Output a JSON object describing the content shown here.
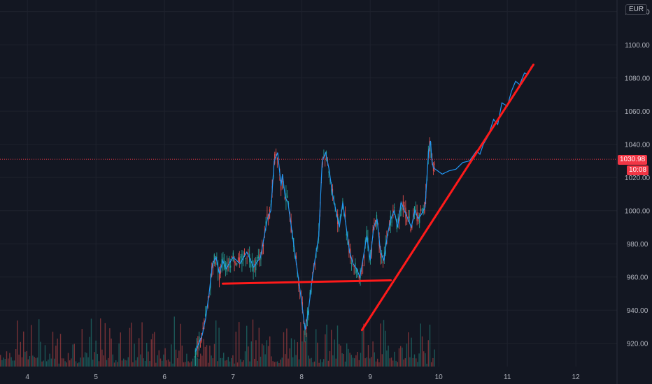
{
  "currency": "EUR",
  "price_label": "1030.98",
  "time_label": "10:08",
  "colors": {
    "background": "#131722",
    "candle_up": "#26a69a",
    "candle_down": "#ef5350",
    "overlay_line": "#2196f3",
    "drawing": "#ff1a1a",
    "price_badge": "#f23645"
  },
  "chart_data": {
    "type": "line",
    "title": "",
    "x_ticks": [
      "4",
      "5",
      "6",
      "7",
      "8",
      "9",
      "10",
      "11",
      "12"
    ],
    "y_ticks": [
      "920.00",
      "940.00",
      "960.00",
      "980.00",
      "1000.00",
      "1020.00",
      "1040.00",
      "1060.00",
      "1080.00",
      "1100.00",
      "1120.00"
    ],
    "ylim": [
      906,
      1127
    ],
    "xlim": [
      3.6,
      12.6
    ],
    "current_price": 1030.98,
    "series": [
      {
        "type": "price",
        "x": [
          6.45,
          6.55,
          6.6,
          6.65,
          6.7,
          6.75,
          6.8,
          6.85,
          6.9,
          7.0,
          7.1,
          7.2,
          7.3,
          7.4,
          7.5,
          7.55,
          7.6,
          7.65,
          7.7,
          7.72,
          7.76,
          7.8,
          7.85,
          7.9,
          7.95,
          8.0,
          8.05,
          8.1,
          8.15,
          8.2,
          8.25,
          8.3,
          8.35,
          8.4,
          8.45,
          8.5,
          8.55,
          8.6,
          8.65,
          8.7,
          8.75,
          8.8,
          8.85,
          8.9,
          8.95,
          9.0,
          9.05,
          9.1,
          9.15,
          9.2,
          9.25,
          9.3,
          9.35,
          9.4,
          9.45,
          9.5,
          9.55,
          9.6,
          9.65,
          9.7,
          9.75,
          9.8,
          9.85,
          9.88,
          9.9,
          9.92,
          9.95
        ],
        "y": [
          915,
          925,
          935,
          950,
          968,
          972,
          962,
          970,
          965,
          972,
          968,
          975,
          966,
          972,
          995,
          1000,
          1030,
          1035,
          1015,
          1022,
          1008,
          1005,
          990,
          975,
          960,
          945,
          928,
          940,
          958,
          972,
          985,
          1030,
          1035,
          1025,
          1010,
          1000,
          990,
          1005,
          990,
          975,
          968,
          965,
          960,
          972,
          985,
          970,
          990,
          995,
          975,
          970,
          985,
          995,
          1000,
          990,
          1005,
          1000,
          995,
          990,
          1000,
          995,
          998,
          1002,
          1035,
          1042,
          1030,
          1026,
          1025
        ]
      },
      {
        "type": "projection",
        "x": [
          9.95,
          10.05,
          10.15,
          10.25,
          10.35,
          10.45,
          10.55,
          10.6,
          10.65,
          10.72,
          10.8,
          10.86,
          10.92,
          11.0,
          11.06,
          11.12,
          11.18,
          11.25,
          11.3,
          11.35
        ],
        "y": [
          1025,
          1022,
          1024,
          1025,
          1029,
          1030,
          1036,
          1034,
          1040,
          1045,
          1055,
          1052,
          1065,
          1063,
          1072,
          1078,
          1076,
          1083,
          1082,
          1087
        ]
      }
    ],
    "drawings": [
      {
        "type": "support",
        "x": [
          6.85,
          9.3
        ],
        "y": [
          956,
          958
        ]
      },
      {
        "type": "trendline",
        "x": [
          8.88,
          11.38
        ],
        "y": [
          928,
          1088
        ]
      }
    ]
  }
}
